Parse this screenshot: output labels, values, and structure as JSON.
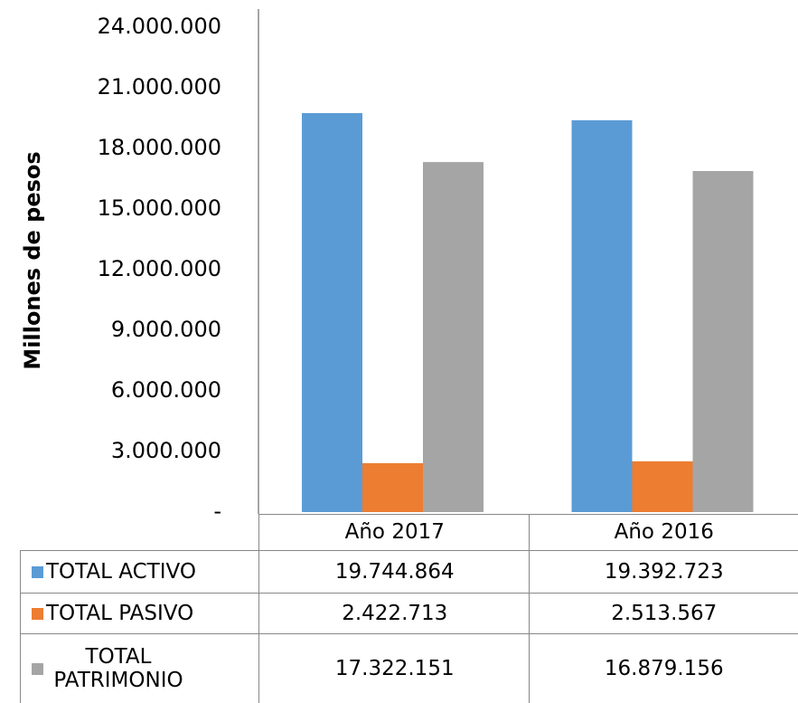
{
  "chart_data": {
    "type": "bar",
    "y_axis_label": "Millones de pesos",
    "categories": [
      "Año 2017",
      "Año 2016"
    ],
    "series": [
      {
        "name": "TOTAL ACTIVO",
        "color": "#5b9bd5",
        "values": [
          19744864,
          19392723
        ],
        "value_labels": [
          "19.744.864",
          "19.392.723"
        ]
      },
      {
        "name": "TOTAL PASIVO",
        "color": "#ed7d31",
        "values": [
          2422713,
          2513567
        ],
        "value_labels": [
          "2.422.713",
          "2.513.567"
        ]
      },
      {
        "name": "TOTAL PATRIMONIO",
        "color": "#a5a5a5",
        "values": [
          17322151,
          16879156
        ],
        "value_labels": [
          "17.322.151",
          "16.879.156"
        ]
      }
    ],
    "ylim": [
      0,
      24000000
    ],
    "yticks": [
      {
        "value": 0,
        "label": "-"
      },
      {
        "value": 3000000,
        "label": "3.000.000"
      },
      {
        "value": 6000000,
        "label": "6.000.000"
      },
      {
        "value": 9000000,
        "label": "9.000.000"
      },
      {
        "value": 12000000,
        "label": "12.000.000"
      },
      {
        "value": 15000000,
        "label": "15.000.000"
      },
      {
        "value": 18000000,
        "label": "18.000.000"
      },
      {
        "value": 21000000,
        "label": "21.000.000"
      },
      {
        "value": 24000000,
        "label": "24.000.000"
      }
    ],
    "grid": false
  }
}
